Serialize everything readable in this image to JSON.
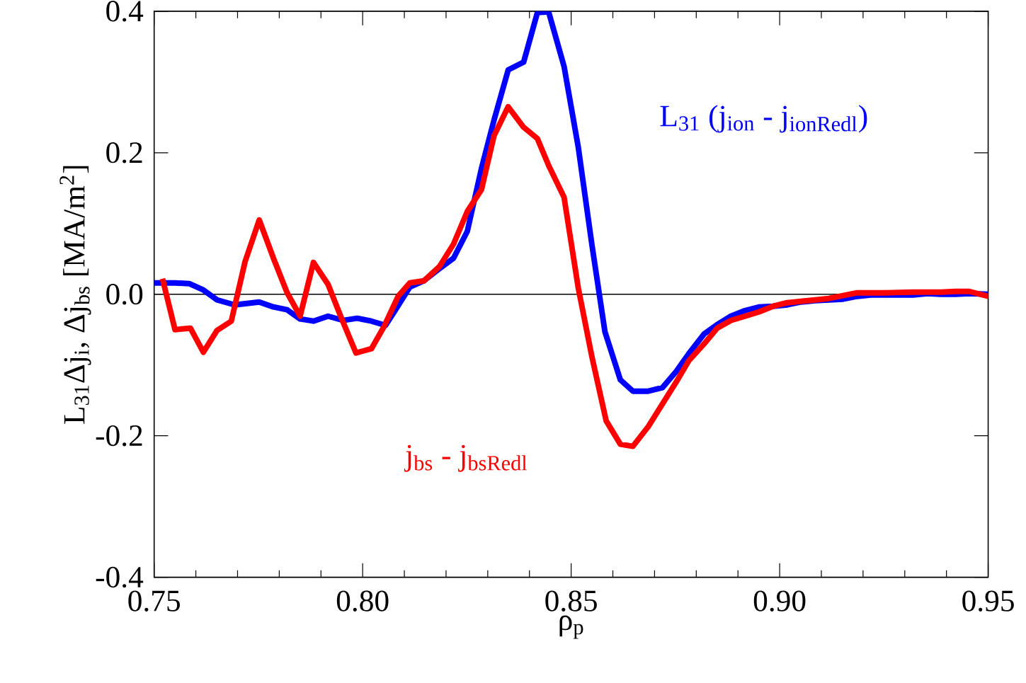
{
  "chart_data": {
    "type": "line",
    "xlabel": "ρ$_{p}$",
    "ylabel": "L$_{31}$Δj$_{i}$, Δj$_{bs}$ [MA/m$^{2}$]",
    "xlim": [
      0.75,
      0.95
    ],
    "ylim": [
      -0.4,
      0.4
    ],
    "xticks": [
      {
        "value": 0.75,
        "label": "0.75"
      },
      {
        "value": 0.8,
        "label": "0.80"
      },
      {
        "value": 0.85,
        "label": "0.85"
      },
      {
        "value": 0.9,
        "label": "0.90"
      },
      {
        "value": 0.95,
        "label": "0.95"
      }
    ],
    "yticks": [
      {
        "value": -0.4,
        "label": "-0.4"
      },
      {
        "value": -0.2,
        "label": "-0.2"
      },
      {
        "value": 0,
        "label": "0.0"
      },
      {
        "value": 0.2,
        "label": "0.2"
      },
      {
        "value": 0.4,
        "label": "0.4"
      }
    ],
    "grid": false,
    "legend": false,
    "marker": "none",
    "line_style": "solid",
    "ref_lines": [
      {
        "axis": "y",
        "value": 0,
        "color": "#000000"
      }
    ],
    "series": [
      {
        "name": "L$_{31}$ (j$_{ion}$ - j$_{ionRedl}$)",
        "color": "#0000ff",
        "x": [
          0.75,
          0.755,
          0.7584,
          0.7618,
          0.7651,
          0.7693,
          0.7752,
          0.7786,
          0.7819,
          0.785,
          0.7882,
          0.7917,
          0.7954,
          0.7987,
          0.8021,
          0.8055,
          0.808,
          0.8113,
          0.8147,
          0.8184,
          0.8218,
          0.8251,
          0.8285,
          0.8315,
          0.8349,
          0.8386,
          0.8419,
          0.8446,
          0.8483,
          0.8517,
          0.855,
          0.8581,
          0.8618,
          0.8648,
          0.8685,
          0.8719,
          0.8752,
          0.8782,
          0.8819,
          0.885,
          0.8883,
          0.8917,
          0.895,
          0.8984,
          0.9018,
          0.9051,
          0.9085,
          0.9118,
          0.9152,
          0.9186,
          0.9219,
          0.9253,
          0.9287,
          0.932,
          0.9354,
          0.9387,
          0.9421,
          0.9455,
          0.95
        ],
        "values": [
          0.016,
          0.016,
          0.015,
          0.006,
          -0.008,
          -0.015,
          -0.011,
          -0.018,
          -0.022,
          -0.035,
          -0.038,
          -0.031,
          -0.037,
          -0.034,
          -0.038,
          -0.044,
          -0.021,
          0.01,
          0.019,
          0.036,
          0.051,
          0.089,
          0.178,
          0.246,
          0.317,
          0.328,
          0.398,
          0.399,
          0.322,
          0.208,
          0.069,
          -0.053,
          -0.121,
          -0.137,
          -0.137,
          -0.132,
          -0.109,
          -0.084,
          -0.056,
          -0.043,
          -0.031,
          -0.023,
          -0.018,
          -0.017,
          -0.015,
          -0.011,
          -0.009,
          -0.008,
          -0.007,
          -0.003,
          -0.001,
          -0.001,
          -0.001,
          -0.001,
          0.001,
          0,
          0,
          0.001,
          0
        ]
      },
      {
        "name": "j$_{bs}$ - j$_{bsRedl}$",
        "color": "#ff0000",
        "x": [
          0.752,
          0.755,
          0.7587,
          0.7618,
          0.7651,
          0.7685,
          0.7718,
          0.7752,
          0.7786,
          0.7819,
          0.785,
          0.7882,
          0.7917,
          0.795,
          0.7984,
          0.8021,
          0.8051,
          0.8085,
          0.8113,
          0.8147,
          0.8184,
          0.8218,
          0.8251,
          0.8285,
          0.8315,
          0.8349,
          0.8386,
          0.8419,
          0.8446,
          0.8483,
          0.8517,
          0.855,
          0.8584,
          0.8618,
          0.8648,
          0.8685,
          0.8719,
          0.8752,
          0.8782,
          0.8819,
          0.885,
          0.8883,
          0.8917,
          0.895,
          0.8984,
          0.9018,
          0.9051,
          0.9085,
          0.9118,
          0.9152,
          0.9186,
          0.9253,
          0.932,
          0.9387,
          0.9421,
          0.9455,
          0.95
        ],
        "values": [
          0.022,
          -0.05,
          -0.048,
          -0.082,
          -0.051,
          -0.038,
          0.046,
          0.105,
          0.051,
          0.002,
          -0.031,
          0.045,
          0.014,
          -0.035,
          -0.083,
          -0.077,
          -0.046,
          -0.003,
          0.016,
          0.019,
          0.039,
          0.071,
          0.117,
          0.148,
          0.224,
          0.265,
          0.236,
          0.22,
          0.182,
          0.137,
          0.009,
          -0.089,
          -0.179,
          -0.212,
          -0.215,
          -0.187,
          -0.155,
          -0.124,
          -0.094,
          -0.07,
          -0.048,
          -0.037,
          -0.031,
          -0.025,
          -0.017,
          -0.012,
          -0.01,
          -0.008,
          -0.006,
          -0.002,
          0.002,
          0.002,
          0.003,
          0.003,
          0.004,
          0.004,
          -0.003
        ]
      }
    ]
  }
}
